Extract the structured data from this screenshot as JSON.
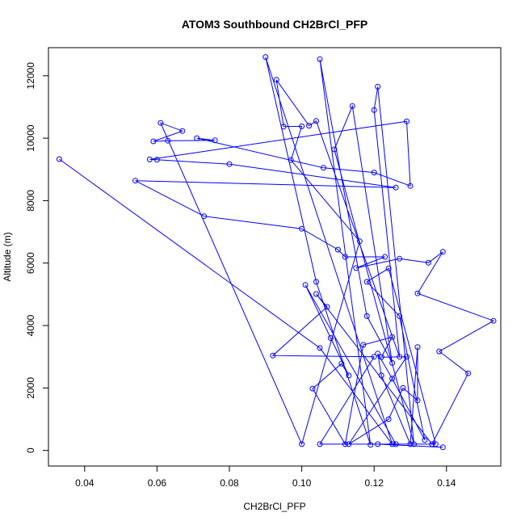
{
  "chart_data": {
    "type": "line",
    "title": "ATOM3 Southbound CH2BrCl_PFP",
    "xlabel": "CH2BrCl_PFP",
    "ylabel": "Altitude (m)",
    "xlim": [
      0.03,
      0.155
    ],
    "ylim": [
      -500,
      12900
    ],
    "xticks": [
      0.04,
      0.06,
      0.08,
      0.1,
      0.12,
      0.14
    ],
    "yticks": [
      0,
      2000,
      4000,
      6000,
      8000,
      10000,
      12000
    ],
    "xtick_labels": [
      "0.04",
      "0.06",
      "0.08",
      "0.10",
      "0.12",
      "0.14"
    ],
    "ytick_labels": [
      "0",
      "2000",
      "4000",
      "6000",
      "8000",
      "10000",
      "12000"
    ],
    "grid": false,
    "marker": "open-circle",
    "line_color": "#0000ff",
    "points": [
      [
        0.033,
        9330
      ],
      [
        0.105,
        3280
      ],
      [
        0.125,
        200
      ],
      [
        0.09,
        12600
      ],
      [
        0.104,
        5400
      ],
      [
        0.119,
        180
      ],
      [
        0.105,
        12530
      ],
      [
        0.118,
        4300
      ],
      [
        0.125,
        2800
      ],
      [
        0.114,
        11030
      ],
      [
        0.109,
        9640
      ],
      [
        0.131,
        200
      ],
      [
        0.121,
        11650
      ],
      [
        0.12,
        10900
      ],
      [
        0.127,
        3000
      ],
      [
        0.104,
        10550
      ],
      [
        0.102,
        10400
      ],
      [
        0.093,
        11870
      ],
      [
        0.095,
        10370
      ],
      [
        0.1,
        10380
      ],
      [
        0.097,
        9300
      ],
      [
        0.116,
        6700
      ],
      [
        0.1,
        200
      ],
      [
        0.061,
        10490
      ],
      [
        0.067,
        10230
      ],
      [
        0.059,
        9900
      ],
      [
        0.063,
        9920
      ],
      [
        0.076,
        9930
      ],
      [
        0.071,
        10000
      ],
      [
        0.106,
        9050
      ],
      [
        0.12,
        8900
      ],
      [
        0.13,
        8470
      ],
      [
        0.129,
        10540
      ],
      [
        0.058,
        9320
      ],
      [
        0.06,
        9310
      ],
      [
        0.08,
        9170
      ],
      [
        0.126,
        8420
      ],
      [
        0.054,
        8640
      ],
      [
        0.073,
        7500
      ],
      [
        0.1,
        7100
      ],
      [
        0.11,
        6430
      ],
      [
        0.112,
        6200
      ],
      [
        0.123,
        6200
      ],
      [
        0.115,
        5840
      ],
      [
        0.127,
        6140
      ],
      [
        0.135,
        6010
      ],
      [
        0.139,
        6360
      ],
      [
        0.132,
        5030
      ],
      [
        0.153,
        4150
      ],
      [
        0.138,
        3170
      ],
      [
        0.146,
        2470
      ],
      [
        0.136,
        200
      ],
      [
        0.104,
        5010
      ],
      [
        0.107,
        4600
      ],
      [
        0.092,
        3040
      ],
      [
        0.12,
        3000
      ],
      [
        0.105,
        200
      ],
      [
        0.126,
        200
      ],
      [
        0.101,
        5300
      ],
      [
        0.108,
        3600
      ],
      [
        0.113,
        2400
      ],
      [
        0.111,
        2780
      ],
      [
        0.103,
        1980
      ],
      [
        0.112,
        200
      ],
      [
        0.117,
        3380
      ],
      [
        0.125,
        3630
      ],
      [
        0.122,
        2990
      ],
      [
        0.129,
        3000
      ],
      [
        0.113,
        200
      ],
      [
        0.124,
        1000
      ],
      [
        0.128,
        2000
      ],
      [
        0.132,
        1600
      ],
      [
        0.132,
        3310
      ],
      [
        0.13,
        200
      ],
      [
        0.122,
        2400
      ],
      [
        0.121,
        3100
      ],
      [
        0.125,
        2300
      ],
      [
        0.134,
        330
      ],
      [
        0.127,
        4300
      ],
      [
        0.118,
        5400
      ],
      [
        0.124,
        5830
      ],
      [
        0.137,
        200
      ],
      [
        0.121,
        200
      ],
      [
        0.139,
        100
      ]
    ]
  }
}
